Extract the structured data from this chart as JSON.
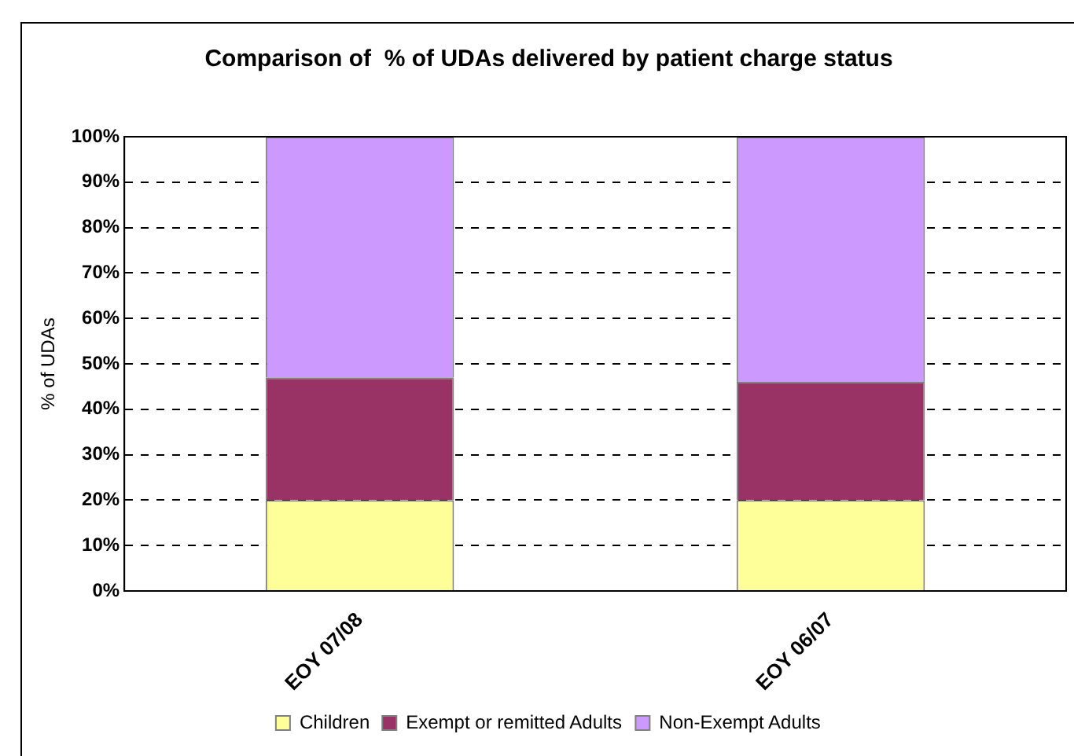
{
  "chart_data": {
    "type": "bar",
    "title": "Comparison of  % of UDAs delivered by patient charge status",
    "ylabel": "% of UDAs",
    "categories": [
      "EOY 07/08",
      "EOY 06/07"
    ],
    "series": [
      {
        "name": "Children",
        "color": "#ffff99",
        "values": [
          20,
          20
        ]
      },
      {
        "name": "Exempt or remitted Adults",
        "color": "#993366",
        "values": [
          27,
          26
        ]
      },
      {
        "name": "Non-Exempt Adults",
        "color": "#cc99ff",
        "values": [
          53,
          54
        ]
      }
    ],
    "stacked": true,
    "ylim": [
      0,
      100
    ],
    "yticks": [
      {
        "value": 0,
        "label": "0%"
      },
      {
        "value": 10,
        "label": "10%"
      },
      {
        "value": 20,
        "label": "20%"
      },
      {
        "value": 30,
        "label": "30%"
      },
      {
        "value": 40,
        "label": "40%"
      },
      {
        "value": 50,
        "label": "50%"
      },
      {
        "value": 60,
        "label": "60%"
      },
      {
        "value": 70,
        "label": "70%"
      },
      {
        "value": 80,
        "label": "80%"
      },
      {
        "value": 90,
        "label": "90%"
      },
      {
        "value": 100,
        "label": "100%"
      }
    ],
    "grid": "y",
    "legend": "bottom"
  }
}
